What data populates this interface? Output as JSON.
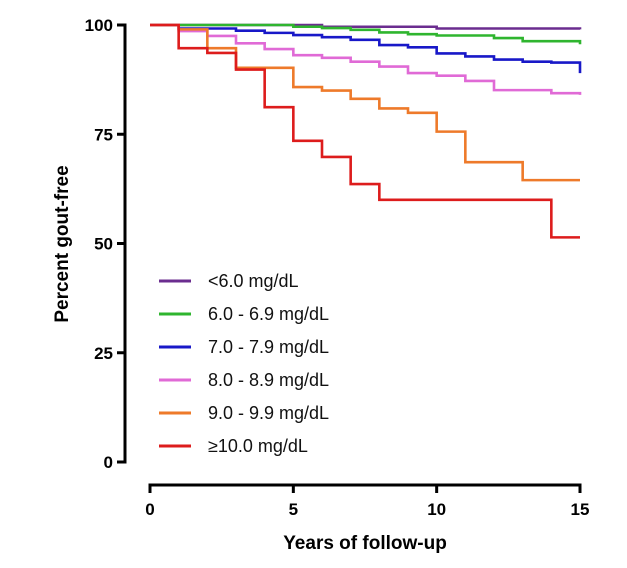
{
  "chart_data": {
    "type": "line",
    "subtype": "kaplan-meier-step",
    "title": "",
    "xlabel": "Years of follow-up",
    "ylabel": "Percent gout-free",
    "xlim": [
      0,
      15
    ],
    "ylim": [
      0,
      100
    ],
    "xticks": [
      0,
      5,
      10,
      15
    ],
    "xtick_labels": [
      "0",
      "5",
      "10",
      "15"
    ],
    "yticks": [
      0,
      25,
      50,
      75,
      100
    ],
    "ytick_labels": [
      "0",
      "25",
      "50",
      "75",
      "100"
    ],
    "grid": false,
    "legend_position": "lower-left",
    "series": [
      {
        "name": "<6.0 mg/dL",
        "color": "#6b2d8f",
        "x": [
          0,
          6,
          10,
          15
        ],
        "y": [
          100,
          99.6,
          99.2,
          99.0
        ]
      },
      {
        "name": "6.0 - 6.9 mg/dL",
        "color": "#2fb52f",
        "x": [
          0,
          5,
          6,
          7,
          8,
          9,
          10,
          12,
          13,
          15
        ],
        "y": [
          100,
          99.6,
          99.3,
          98.9,
          98.3,
          97.9,
          97.6,
          97.0,
          96.3,
          95.6
        ]
      },
      {
        "name": "7.0 - 7.9 mg/dL",
        "color": "#1818c8",
        "x": [
          0,
          1,
          3,
          4,
          5,
          6,
          7,
          8,
          9,
          10,
          11,
          12,
          13,
          14,
          15
        ],
        "y": [
          100,
          99.2,
          98.7,
          98.2,
          97.7,
          97.2,
          96.6,
          95.4,
          94.9,
          93.5,
          92.8,
          92.1,
          91.6,
          91.4,
          89.0
        ]
      },
      {
        "name": "8.0 - 8.9 mg/dL",
        "color": "#e06ad6",
        "x": [
          0,
          1,
          2,
          3,
          4,
          5,
          6,
          7,
          8,
          9,
          10,
          11,
          12,
          14,
          15
        ],
        "y": [
          100,
          98.6,
          97.5,
          95.8,
          94.5,
          93.1,
          92.5,
          91.6,
          90.5,
          89.0,
          88.4,
          87.2,
          85.1,
          84.4,
          84.0
        ]
      },
      {
        "name": "9.0 - 9.9 mg/dL",
        "color": "#ee7a2a",
        "x": [
          0,
          1,
          2,
          3,
          5,
          6,
          7,
          8,
          9,
          10,
          11,
          13,
          15
        ],
        "y": [
          100,
          99,
          94.7,
          90.2,
          85.8,
          85.0,
          83.1,
          80.9,
          79.9,
          75.6,
          68.6,
          64.5,
          64.5
        ]
      },
      {
        "name": "≥10.0 mg/dL",
        "color": "#dd1c1c",
        "x": [
          0,
          1,
          2,
          3,
          4,
          5,
          6,
          7,
          8,
          14,
          15
        ],
        "y": [
          100,
          94.7,
          93.6,
          89.8,
          81.2,
          73.5,
          69.8,
          63.6,
          60.0,
          51.4,
          51.4
        ]
      }
    ]
  }
}
